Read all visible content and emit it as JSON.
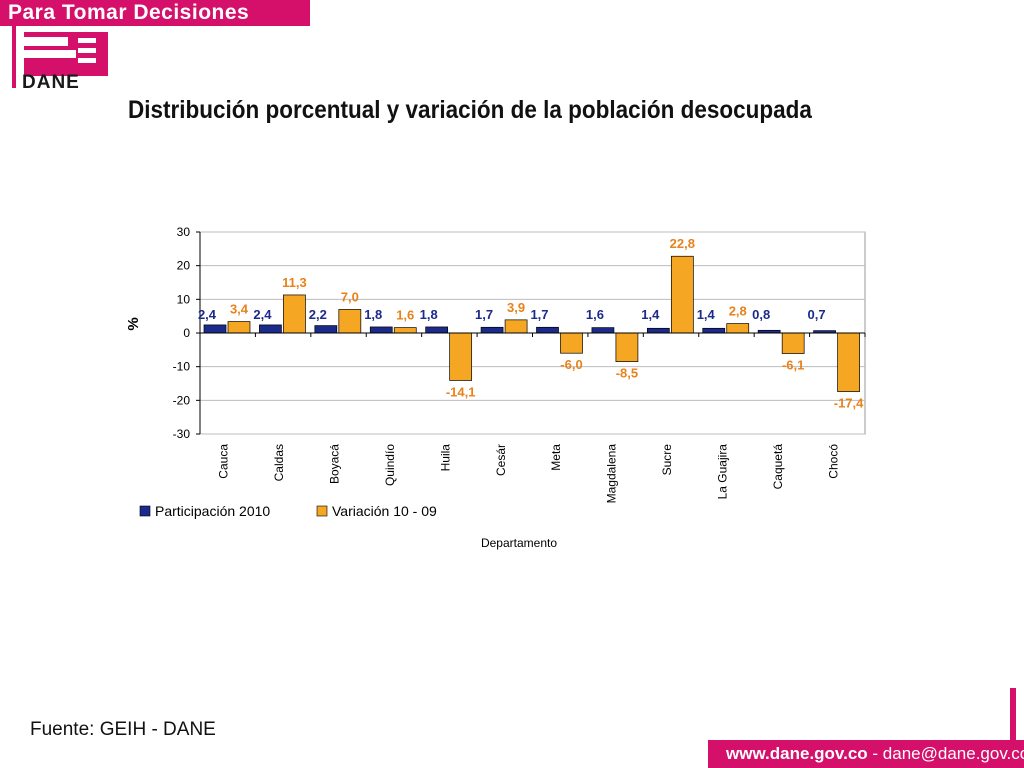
{
  "header": {
    "banner_text": "Para Tomar Decisiones",
    "logo_text": "DANE",
    "brand_color": "#d5106a"
  },
  "title": "Distribución porcentual y variación de la población desocupada",
  "chart_data": {
    "type": "bar",
    "categories": [
      "Cauca",
      "Caldas",
      "Boyacá",
      "Quindío",
      "Huila",
      "Cesár",
      "Meta",
      "Magdalena",
      "Sucre",
      "La Guajira",
      "Caquetá",
      "Chocó"
    ],
    "series": [
      {
        "name": "Participación 2010",
        "color": "#1c2a8c",
        "values": [
          2.4,
          2.4,
          2.2,
          1.8,
          1.8,
          1.7,
          1.7,
          1.6,
          1.4,
          1.4,
          0.8,
          0.7
        ],
        "labels": [
          "2,4",
          "2,4",
          "2,2",
          "1,8",
          "1,8",
          "1,7",
          "1,7",
          "1,6",
          "1,4",
          "1,4",
          "0,8",
          "0,7"
        ]
      },
      {
        "name": "Variación 10 - 09",
        "color": "#f5a623",
        "values": [
          3.4,
          11.3,
          7.0,
          1.6,
          -14.1,
          3.9,
          -6.0,
          -8.5,
          22.8,
          2.8,
          -6.1,
          -17.4
        ],
        "labels": [
          "3,4",
          "11,3",
          "7,0",
          "1,6",
          "-14,1",
          "3,9",
          "-6,0",
          "-8,5",
          "22,8",
          "2,8",
          "-6,1",
          "-17,4"
        ]
      }
    ],
    "ylabel": "%",
    "xlabel": "Departamento",
    "ylim": [
      -30,
      30
    ],
    "yticks": [
      30,
      20,
      10,
      0,
      -10,
      -20,
      -30
    ],
    "grid": true,
    "legend_position": "bottom-left"
  },
  "footer": {
    "source": "Fuente: GEIH - DANE",
    "website": "www.dane.gov.co",
    "separator": " - ",
    "email": "dane@dane.gov.co"
  }
}
